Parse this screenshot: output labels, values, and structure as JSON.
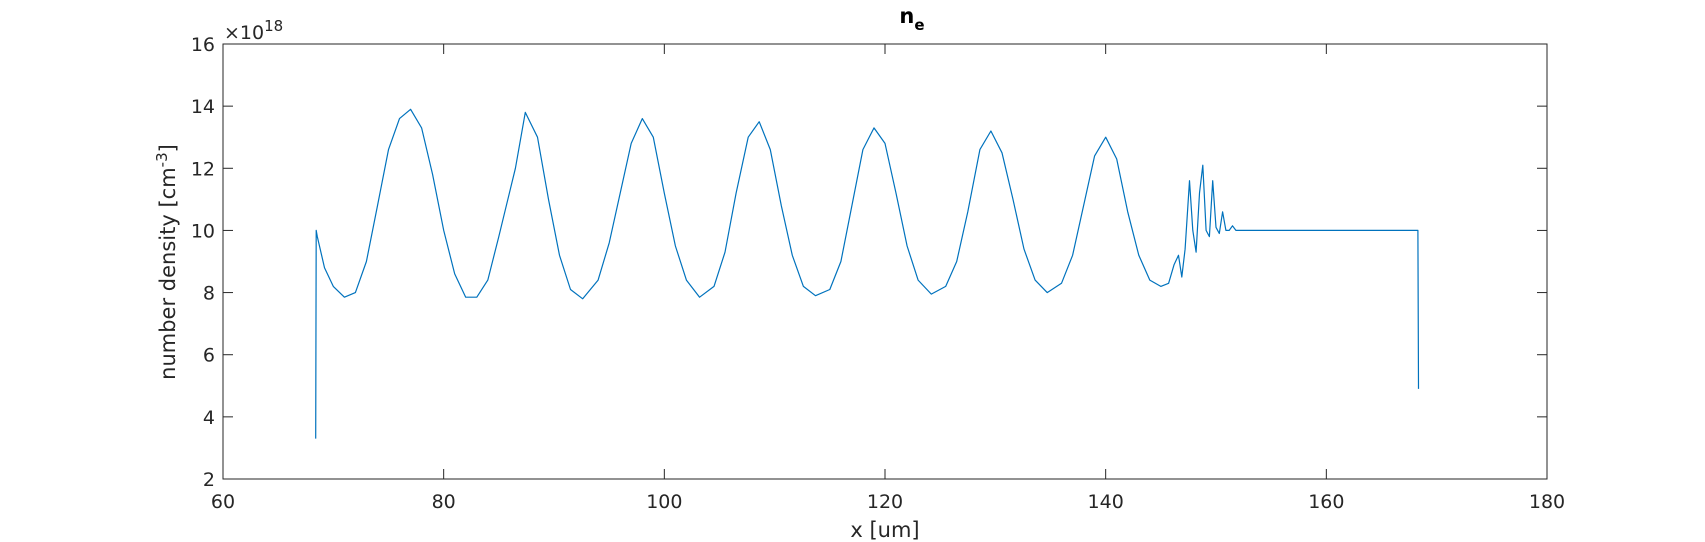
{
  "chart_data": {
    "type": "line",
    "title": "n",
    "title_subscript": "e",
    "xlabel": "x [um]",
    "ylabel": "number density [cm",
    "ylabel_sup": "-3",
    "ylabel_end": "]",
    "y_exponent_prefix": "×10",
    "y_exponent": "18",
    "xlim": [
      60,
      180
    ],
    "ylim": [
      2,
      16
    ],
    "x_ticks": [
      60,
      80,
      100,
      120,
      140,
      160,
      180
    ],
    "y_ticks": [
      2,
      4,
      6,
      8,
      10,
      12,
      14,
      16
    ],
    "grid": false,
    "box": true,
    "colors": {
      "series": "#0072BD",
      "axes": "#262626"
    },
    "series": [
      {
        "x": [
          68.4,
          68.45,
          68.55,
          69.2,
          70.0,
          71.0,
          72.0,
          73.0,
          74.0,
          75.0,
          76.0,
          77.0,
          78.0,
          79.0,
          80.0,
          81.0,
          82.0,
          83.0,
          84.0,
          85.0,
          86.5,
          87.4,
          88.5,
          89.5,
          90.5,
          91.5,
          92.6,
          94.0,
          95.0,
          96.0,
          97.0,
          98.0,
          99.0,
          100.0,
          101.0,
          102.0,
          103.2,
          104.5,
          105.5,
          106.5,
          107.6,
          108.6,
          109.6,
          110.6,
          111.6,
          112.6,
          113.7,
          115.0,
          116.0,
          117.0,
          118.0,
          119.0,
          120.0,
          121.0,
          122.0,
          123.0,
          124.2,
          125.5,
          126.5,
          127.5,
          128.6,
          129.6,
          130.6,
          131.6,
          132.6,
          133.6,
          134.7,
          136.0,
          137.0,
          138.0,
          139.0,
          140.0,
          141.0,
          142.0,
          143.0,
          144.0,
          145.0,
          145.7,
          146.2,
          146.6,
          146.9,
          147.2,
          147.6,
          147.9,
          148.2,
          148.5,
          148.8,
          149.1,
          149.4,
          149.7,
          150.0,
          150.3,
          150.6,
          150.9,
          151.2,
          151.5,
          151.8,
          152.2,
          152.6,
          155.0,
          160.0,
          165.0,
          168.3,
          168.35
        ],
        "y": [
          3.3,
          10.0,
          9.8,
          8.8,
          8.2,
          7.85,
          8.0,
          9.0,
          10.8,
          12.6,
          13.6,
          13.9,
          13.3,
          11.8,
          10.0,
          8.6,
          7.85,
          7.85,
          8.4,
          9.8,
          12.0,
          13.8,
          13.0,
          11.0,
          9.2,
          8.1,
          7.8,
          8.4,
          9.6,
          11.2,
          12.8,
          13.6,
          13.0,
          11.2,
          9.5,
          8.4,
          7.85,
          8.2,
          9.3,
          11.2,
          13.0,
          13.5,
          12.6,
          10.8,
          9.2,
          8.2,
          7.9,
          8.1,
          9.0,
          10.8,
          12.6,
          13.3,
          12.8,
          11.2,
          9.5,
          8.4,
          7.95,
          8.2,
          9.0,
          10.6,
          12.6,
          13.2,
          12.5,
          11.0,
          9.4,
          8.4,
          8.0,
          8.3,
          9.2,
          10.8,
          12.4,
          13.0,
          12.3,
          10.6,
          9.2,
          8.4,
          8.2,
          8.3,
          8.9,
          9.2,
          8.5,
          9.4,
          11.6,
          10.0,
          9.3,
          11.2,
          12.1,
          10.0,
          9.8,
          11.6,
          10.1,
          9.9,
          10.6,
          10.0,
          10.0,
          10.15,
          10.0,
          10.0,
          10.0,
          10.0,
          10.0,
          10.0,
          10.0,
          4.9
        ]
      }
    ]
  }
}
